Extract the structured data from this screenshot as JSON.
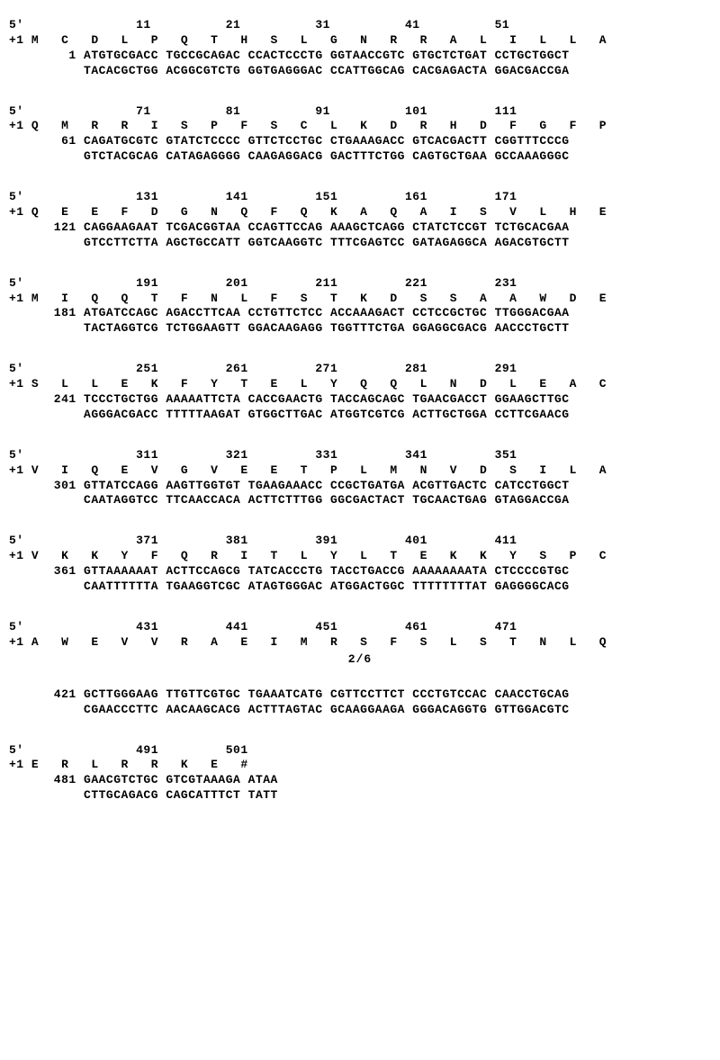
{
  "font": {
    "family": "monospace",
    "size_pt": 10,
    "weight": "bold"
  },
  "colors": {
    "background": "#ffffff",
    "text": "#000000"
  },
  "frame_prefix": "+1",
  "five_prime_label": "5'",
  "page_marker": "2/6",
  "blocks": [
    {
      "ruler": [
        11,
        21,
        31,
        41,
        51
      ],
      "aa": [
        "M",
        "C",
        "D",
        "L",
        "P",
        "Q",
        "T",
        "H",
        "S",
        "L",
        "G",
        "N",
        "R",
        "R",
        "A",
        "L",
        "I",
        "L",
        "L",
        "A"
      ],
      "dna_start": 1,
      "dna": "ATGTGCGACC TGCCGCAGAC CCACTCCCTG GGTAACCGTC GTGCTCTGAT CCTGCTGGCT",
      "comp": "TACACGCTGG ACGGCGTCTG GGTGAGGGAC CCATTGGCAG CACGAGACTA GGACGACCGA"
    },
    {
      "ruler": [
        71,
        81,
        91,
        101,
        111
      ],
      "aa": [
        "Q",
        "M",
        "R",
        "R",
        "I",
        "S",
        "P",
        "F",
        "S",
        "C",
        "L",
        "K",
        "D",
        "R",
        "H",
        "D",
        "F",
        "G",
        "F",
        "P"
      ],
      "dna_start": 61,
      "dna": "CAGATGCGTC GTATCTCCCC GTTCTCCTGC CTGAAAGACC GTCACGACTT CGGTTTCCCG",
      "comp": "GTCTACGCAG CATAGAGGGG CAAGAGGACG GACTTTCTGG CAGTGCTGAA GCCAAAGGGC"
    },
    {
      "ruler": [
        131,
        141,
        151,
        161,
        171
      ],
      "aa": [
        "Q",
        "E",
        "E",
        "F",
        "D",
        "G",
        "N",
        "Q",
        "F",
        "Q",
        "K",
        "A",
        "Q",
        "A",
        "I",
        "S",
        "V",
        "L",
        "H",
        "E"
      ],
      "dna_start": 121,
      "dna": "CAGGAAGAAT TCGACGGTAA CCAGTTCCAG AAAGCTCAGG CTATCTCCGT TCTGCACGAA",
      "comp": "GTCCTTCTTA AGCTGCCATT GGTCAAGGTC TTTCGAGTCC GATAGAGGCA AGACGTGCTT"
    },
    {
      "ruler": [
        191,
        201,
        211,
        221,
        231
      ],
      "aa": [
        "M",
        "I",
        "Q",
        "Q",
        "T",
        "F",
        "N",
        "L",
        "F",
        "S",
        "T",
        "K",
        "D",
        "S",
        "S",
        "A",
        "A",
        "W",
        "D",
        "E"
      ],
      "dna_start": 181,
      "dna": "ATGATCCAGC AGACCTTCAA CCTGTTCTCC ACCAAAGACT CCTCCGCTGC TTGGGACGAA",
      "comp": "TACTAGGTCG TCTGGAAGTT GGACAAGAGG TGGTTTCTGA GGAGGCGACG AACCCTGCTT"
    },
    {
      "ruler": [
        251,
        261,
        271,
        281,
        291
      ],
      "aa": [
        "S",
        "L",
        "L",
        "E",
        "K",
        "F",
        "Y",
        "T",
        "E",
        "L",
        "Y",
        "Q",
        "Q",
        "L",
        "N",
        "D",
        "L",
        "E",
        "A",
        "C"
      ],
      "dna_start": 241,
      "dna": "TCCCTGCTGG AAAAATTCTA CACCGAACTG TACCAGCAGC TGAACGACCT GGAAGCTTGC",
      "comp": "AGGGACGACC TTTTTAAGAT GTGGCTTGAC ATGGTCGTCG ACTTGCTGGA CCTTCGAACG"
    },
    {
      "ruler": [
        311,
        321,
        331,
        341,
        351
      ],
      "aa": [
        "V",
        "I",
        "Q",
        "E",
        "V",
        "G",
        "V",
        "E",
        "E",
        "T",
        "P",
        "L",
        "M",
        "N",
        "V",
        "D",
        "S",
        "I",
        "L",
        "A"
      ],
      "dna_start": 301,
      "dna": "GTTATCCAGG AAGTTGGTGT TGAAGAAACC CCGCTGATGA ACGTTGACTC CATCCTGGCT",
      "comp": "CAATAGGTCC TTCAACCACA ACTTCTTTGG GGCGACTACT TGCAACTGAG GTAGGACCGA"
    },
    {
      "ruler": [
        371,
        381,
        391,
        401,
        411
      ],
      "aa": [
        "V",
        "K",
        "K",
        "Y",
        "F",
        "Q",
        "R",
        "I",
        "T",
        "L",
        "Y",
        "L",
        "T",
        "E",
        "K",
        "K",
        "Y",
        "S",
        "P",
        "C"
      ],
      "dna_start": 361,
      "dna": "GTTAAAAAAT ACTTCCAGCG TATCACCCTG TACCTGACCG AAAAAAAATA CTCCCCGTGC",
      "comp": "CAATTTTTTA TGAAGGTCGC ATAGTGGGAC ATGGACTGGC TTTTTTTTAT GAGGGGCACG"
    },
    {
      "ruler": [
        431,
        441,
        451,
        461,
        471
      ],
      "aa": [
        "A",
        "W",
        "E",
        "V",
        "V",
        "R",
        "A",
        "E",
        "I",
        "M",
        "R",
        "S",
        "F",
        "S",
        "L",
        "S",
        "T",
        "N",
        "L",
        "Q"
      ],
      "dna_start": 421,
      "dna": "GCTTGGGAAG TTGTTCGTGC TGAAATCATG CGTTCCTTCT CCCTGTCCAC CAACCTGCAG",
      "comp": "CGAACCCTTC AACAAGCACG ACTTTAGTAC GCAAGGAAGA GGGACAGGTG GTTGGACGTC",
      "split_after_aa": true
    },
    {
      "ruler": [
        491,
        501
      ],
      "aa": [
        "E",
        "R",
        "L",
        "R",
        "R",
        "K",
        "E",
        "#"
      ],
      "dna_start": 481,
      "dna": "GAACGTCTGC GTCGTAAAGA ATAA",
      "comp": "CTTGCAGACG CAGCATTTCT TATT",
      "short": true
    }
  ]
}
